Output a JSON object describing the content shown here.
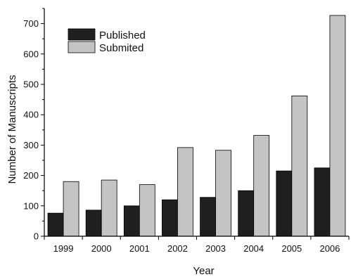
{
  "chart_data": {
    "type": "bar",
    "categories": [
      "1999",
      "2000",
      "2001",
      "2002",
      "2003",
      "2004",
      "2005",
      "2006"
    ],
    "series": [
      {
        "name": "Published",
        "values": [
          76,
          86,
          100,
          120,
          128,
          150,
          215,
          225
        ],
        "color": "#1f1f1f"
      },
      {
        "name": "Submited",
        "values": [
          180,
          185,
          170,
          292,
          283,
          332,
          462,
          727
        ],
        "color": "#c4c4c4"
      }
    ],
    "xlabel": "Year",
    "ylabel": "Number of Manuscripts",
    "ylim": [
      0,
      750
    ],
    "yticks": [
      0,
      100,
      200,
      300,
      400,
      500,
      600,
      700
    ],
    "grid": false,
    "legend_position": "top-left"
  }
}
